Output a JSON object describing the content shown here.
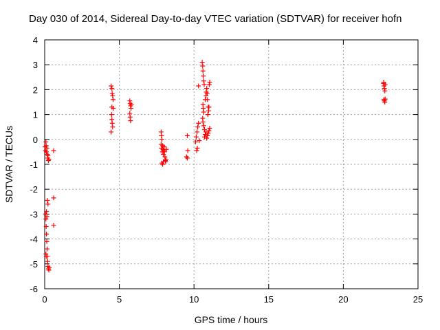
{
  "chart_data": {
    "type": "scatter",
    "title": "Day 030 of 2014, Sidereal Day-to-day VTEC variation (SDTVAR) for receiver hofn",
    "xlabel": "GPS time / hours",
    "ylabel": "SDTVAR / TECUs",
    "xlim": [
      0,
      25
    ],
    "ylim": [
      -6,
      4
    ],
    "x_ticks": [
      0,
      5,
      10,
      15,
      20,
      25
    ],
    "y_ticks": [
      -6,
      -5,
      -4,
      -3,
      -2,
      -1,
      0,
      1,
      2,
      3,
      4
    ],
    "grid": true,
    "marker": "plus",
    "colors": {
      "marker": "#ff0000",
      "grid": "#a0a0a0",
      "axis": "#000000"
    },
    "series": [
      {
        "name": "SDTVAR",
        "points": [
          [
            0.02,
            -0.3
          ],
          [
            0.05,
            -0.45
          ],
          [
            0.08,
            -0.1
          ],
          [
            0.1,
            -0.25
          ],
          [
            0.12,
            -0.5
          ],
          [
            0.15,
            -0.35
          ],
          [
            0.18,
            -0.6
          ],
          [
            0.2,
            -0.75
          ],
          [
            0.22,
            -0.65
          ],
          [
            0.25,
            -0.85
          ],
          [
            0.28,
            -0.8
          ],
          [
            0.6,
            -0.45
          ],
          [
            0.05,
            -3.0
          ],
          [
            0.08,
            -3.2
          ],
          [
            0.1,
            -3.5
          ],
          [
            0.12,
            -3.8
          ],
          [
            0.14,
            -4.1
          ],
          [
            0.16,
            -4.4
          ],
          [
            0.18,
            -4.7
          ],
          [
            0.2,
            -4.9
          ],
          [
            0.22,
            -5.1
          ],
          [
            0.25,
            -5.2
          ],
          [
            0.28,
            -5.25
          ],
          [
            0.3,
            -5.15
          ],
          [
            0.18,
            -2.45
          ],
          [
            0.22,
            -2.6
          ],
          [
            0.12,
            -2.9
          ],
          [
            0.15,
            -3.1
          ],
          [
            0.1,
            -4.7
          ],
          [
            0.08,
            -4.6
          ],
          [
            0.6,
            -2.35
          ],
          [
            0.6,
            -3.45
          ],
          [
            4.45,
            2.15
          ],
          [
            4.5,
            2.05
          ],
          [
            4.52,
            1.85
          ],
          [
            4.55,
            1.75
          ],
          [
            4.5,
            1.3
          ],
          [
            4.48,
            1.0
          ],
          [
            4.5,
            0.8
          ],
          [
            4.52,
            0.65
          ],
          [
            4.55,
            0.5
          ],
          [
            4.45,
            0.3
          ],
          [
            4.58,
            1.6
          ],
          [
            4.6,
            1.25
          ],
          [
            5.7,
            1.55
          ],
          [
            5.72,
            1.45
          ],
          [
            5.75,
            1.35
          ],
          [
            5.78,
            1.25
          ],
          [
            5.7,
            1.05
          ],
          [
            5.72,
            0.9
          ],
          [
            5.75,
            0.75
          ],
          [
            5.8,
            1.4
          ],
          [
            7.8,
            0.3
          ],
          [
            7.82,
            0.15
          ],
          [
            7.85,
            0.0
          ],
          [
            7.8,
            -0.2
          ],
          [
            7.82,
            -0.35
          ],
          [
            7.88,
            -0.5
          ],
          [
            7.9,
            -0.25
          ],
          [
            7.92,
            -0.4
          ],
          [
            7.95,
            -0.6
          ],
          [
            7.98,
            -0.45
          ],
          [
            8.0,
            -0.3
          ],
          [
            8.02,
            -0.5
          ],
          [
            8.05,
            -0.7
          ],
          [
            8.08,
            -0.85
          ],
          [
            8.1,
            -0.9
          ],
          [
            7.85,
            -0.95
          ],
          [
            7.9,
            -1.0
          ],
          [
            7.95,
            -0.9
          ],
          [
            8.12,
            -0.8
          ],
          [
            8.15,
            -0.4
          ],
          [
            9.55,
            0.15
          ],
          [
            9.58,
            -0.45
          ],
          [
            9.5,
            -0.7
          ],
          [
            9.55,
            -0.75
          ],
          [
            10.1,
            -0.1
          ],
          [
            10.15,
            0.1
          ],
          [
            10.2,
            0.3
          ],
          [
            10.25,
            0.5
          ],
          [
            10.3,
            0.65
          ],
          [
            10.35,
            -0.05
          ],
          [
            10.22,
            -0.35
          ],
          [
            10.18,
            -0.45
          ],
          [
            10.3,
            2.15
          ],
          [
            10.55,
            3.1
          ],
          [
            10.58,
            2.95
          ],
          [
            10.6,
            2.75
          ],
          [
            10.62,
            2.55
          ],
          [
            10.65,
            2.35
          ],
          [
            10.68,
            2.2
          ],
          [
            10.6,
            1.4
          ],
          [
            10.62,
            1.25
          ],
          [
            10.65,
            1.1
          ],
          [
            10.58,
            0.85
          ],
          [
            10.6,
            0.7
          ],
          [
            10.65,
            0.55
          ],
          [
            10.7,
            0.4
          ],
          [
            10.75,
            1.6
          ],
          [
            10.8,
            1.75
          ],
          [
            10.82,
            1.9
          ],
          [
            10.85,
            2.05
          ],
          [
            10.88,
            1.85
          ],
          [
            10.9,
            1.6
          ],
          [
            10.95,
            1.3
          ],
          [
            10.98,
            1.15
          ],
          [
            11.0,
            1.3
          ],
          [
            10.85,
            0.05
          ],
          [
            10.9,
            0.15
          ],
          [
            10.95,
            0.25
          ],
          [
            11.0,
            0.35
          ],
          [
            11.05,
            0.45
          ],
          [
            10.7,
            0.1
          ],
          [
            10.75,
            0.2
          ],
          [
            10.8,
            0.3
          ],
          [
            11.02,
            2.2
          ],
          [
            11.05,
            2.3
          ],
          [
            10.92,
            1.0
          ],
          [
            22.7,
            2.25
          ],
          [
            22.72,
            2.15
          ],
          [
            22.75,
            2.05
          ],
          [
            22.78,
            1.95
          ],
          [
            22.7,
            2.3
          ],
          [
            22.8,
            2.2
          ],
          [
            22.72,
            1.6
          ],
          [
            22.75,
            1.55
          ],
          [
            22.78,
            1.5
          ],
          [
            22.8,
            1.62
          ]
        ]
      }
    ]
  }
}
